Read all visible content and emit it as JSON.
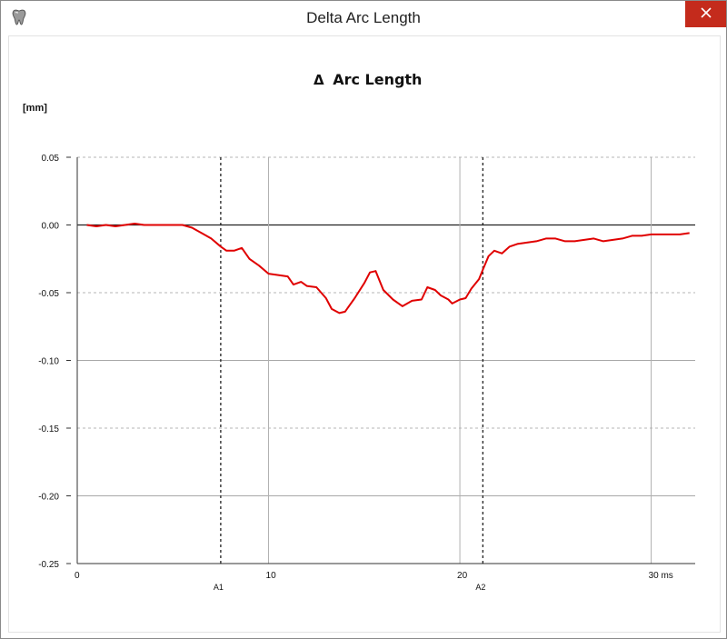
{
  "window": {
    "title": "Delta Arc Length",
    "close_icon": "close-icon",
    "app_icon": "tooth-icon",
    "close_color": "#c42b1c"
  },
  "chart_data": {
    "type": "line",
    "title": "Arc Length",
    "title_prefix": "Δ",
    "ylabel": "[mm]",
    "xlabel": "",
    "xlim": [
      0,
      32.3
    ],
    "ylim": [
      -0.25,
      0.05
    ],
    "yticks": [
      0.05,
      0.0,
      -0.05,
      -0.1,
      -0.15,
      -0.2,
      -0.25
    ],
    "ytick_labels": [
      "0.05",
      "0.00",
      "-0.05",
      "-0.10",
      "-0.15",
      "-0.20",
      "-0.25"
    ],
    "xticks": [
      0,
      10,
      20,
      30
    ],
    "xtick_labels": [
      "0",
      "10",
      "20",
      "30 ms"
    ],
    "markers": [
      {
        "label": "A1",
        "x": 7.5
      },
      {
        "label": "A2",
        "x": 21.2
      }
    ],
    "grid": true,
    "line_color": "#e00000",
    "series": [
      {
        "x": [
          0.5,
          1.0,
          1.5,
          2.0,
          2.5,
          3.0,
          3.5,
          4.0,
          4.5,
          5.0,
          5.5,
          6.0,
          6.5,
          7.0,
          7.5,
          7.8,
          8.2,
          8.6,
          9.0,
          9.5,
          10.0,
          10.5,
          11.0,
          11.3,
          11.7,
          12.0,
          12.5,
          13.0,
          13.3,
          13.7,
          14.0,
          14.5,
          15.0,
          15.3,
          15.6,
          16.0,
          16.5,
          17.0,
          17.5,
          18.0,
          18.3,
          18.7,
          19.0,
          19.4,
          19.6,
          20.0,
          20.3,
          20.6,
          21.0,
          21.2,
          21.5,
          21.8,
          22.2,
          22.6,
          23.0,
          23.5,
          24.0,
          24.5,
          25.0,
          25.5,
          26.0,
          26.5,
          27.0,
          27.5,
          28.0,
          28.5,
          29.0,
          29.5,
          30.0,
          30.5,
          31.0,
          31.5,
          32.0
        ],
        "y": [
          0.0,
          -0.001,
          0.0,
          -0.001,
          0.0,
          0.001,
          0.0,
          0.0,
          0.0,
          0.0,
          0.0,
          -0.002,
          -0.006,
          -0.01,
          -0.016,
          -0.019,
          -0.019,
          -0.017,
          -0.025,
          -0.03,
          -0.036,
          -0.037,
          -0.038,
          -0.044,
          -0.042,
          -0.045,
          -0.046,
          -0.054,
          -0.062,
          -0.065,
          -0.064,
          -0.054,
          -0.043,
          -0.035,
          -0.034,
          -0.048,
          -0.055,
          -0.06,
          -0.056,
          -0.055,
          -0.046,
          -0.048,
          -0.052,
          -0.055,
          -0.058,
          -0.055,
          -0.054,
          -0.047,
          -0.04,
          -0.033,
          -0.023,
          -0.019,
          -0.021,
          -0.016,
          -0.014,
          -0.013,
          -0.012,
          -0.01,
          -0.01,
          -0.012,
          -0.012,
          -0.011,
          -0.01,
          -0.012,
          -0.011,
          -0.01,
          -0.008,
          -0.008,
          -0.007,
          -0.007,
          -0.007,
          -0.007,
          -0.006
        ]
      }
    ]
  }
}
